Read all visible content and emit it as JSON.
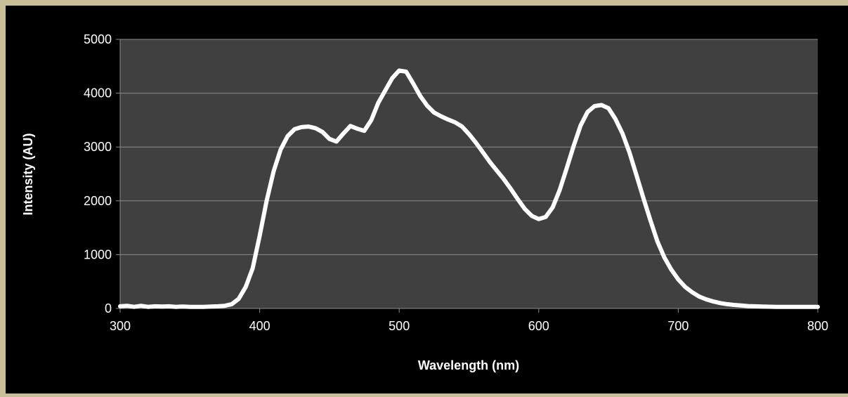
{
  "chart_data": {
    "type": "line",
    "title": "",
    "xlabel": "Wavelength (nm)",
    "ylabel": "Intensity (AU)",
    "xlim": [
      300,
      800
    ],
    "ylim": [
      0,
      5000
    ],
    "xticks": [
      300,
      400,
      500,
      600,
      700,
      800
    ],
    "yticks": [
      0,
      1000,
      2000,
      3000,
      4000,
      5000
    ],
    "grid": "horizontal",
    "legend": "none",
    "colors": {
      "background": "#c8bf98",
      "chart_area": "#000000",
      "plot_area": "#404040",
      "gridline": "#8c8c8c",
      "series": "#ffffff"
    },
    "series": [
      {
        "values": [
          [
            300,
            40
          ],
          [
            305,
            50
          ],
          [
            310,
            30
          ],
          [
            315,
            50
          ],
          [
            320,
            30
          ],
          [
            325,
            40
          ],
          [
            330,
            35
          ],
          [
            335,
            40
          ],
          [
            340,
            30
          ],
          [
            345,
            35
          ],
          [
            350,
            30
          ],
          [
            355,
            30
          ],
          [
            360,
            30
          ],
          [
            365,
            35
          ],
          [
            370,
            40
          ],
          [
            375,
            50
          ],
          [
            380,
            80
          ],
          [
            385,
            180
          ],
          [
            390,
            400
          ],
          [
            395,
            750
          ],
          [
            400,
            1350
          ],
          [
            405,
            2000
          ],
          [
            410,
            2550
          ],
          [
            415,
            2950
          ],
          [
            420,
            3200
          ],
          [
            425,
            3330
          ],
          [
            430,
            3370
          ],
          [
            435,
            3380
          ],
          [
            440,
            3350
          ],
          [
            445,
            3280
          ],
          [
            450,
            3150
          ],
          [
            455,
            3100
          ],
          [
            460,
            3250
          ],
          [
            465,
            3390
          ],
          [
            470,
            3340
          ],
          [
            475,
            3300
          ],
          [
            480,
            3500
          ],
          [
            485,
            3820
          ],
          [
            490,
            4050
          ],
          [
            495,
            4280
          ],
          [
            500,
            4420
          ],
          [
            505,
            4400
          ],
          [
            510,
            4180
          ],
          [
            515,
            3950
          ],
          [
            520,
            3770
          ],
          [
            525,
            3640
          ],
          [
            530,
            3570
          ],
          [
            535,
            3510
          ],
          [
            540,
            3460
          ],
          [
            545,
            3380
          ],
          [
            550,
            3240
          ],
          [
            555,
            3080
          ],
          [
            560,
            2900
          ],
          [
            565,
            2720
          ],
          [
            570,
            2560
          ],
          [
            575,
            2400
          ],
          [
            580,
            2220
          ],
          [
            585,
            2030
          ],
          [
            590,
            1850
          ],
          [
            595,
            1720
          ],
          [
            600,
            1660
          ],
          [
            605,
            1700
          ],
          [
            610,
            1880
          ],
          [
            615,
            2200
          ],
          [
            620,
            2600
          ],
          [
            625,
            3020
          ],
          [
            630,
            3400
          ],
          [
            635,
            3650
          ],
          [
            640,
            3760
          ],
          [
            645,
            3780
          ],
          [
            650,
            3720
          ],
          [
            655,
            3520
          ],
          [
            660,
            3250
          ],
          [
            665,
            2900
          ],
          [
            670,
            2480
          ],
          [
            675,
            2050
          ],
          [
            680,
            1640
          ],
          [
            685,
            1250
          ],
          [
            690,
            950
          ],
          [
            695,
            720
          ],
          [
            700,
            540
          ],
          [
            705,
            400
          ],
          [
            710,
            300
          ],
          [
            715,
            220
          ],
          [
            720,
            170
          ],
          [
            725,
            130
          ],
          [
            730,
            100
          ],
          [
            735,
            80
          ],
          [
            740,
            65
          ],
          [
            745,
            55
          ],
          [
            750,
            45
          ],
          [
            755,
            40
          ],
          [
            760,
            35
          ],
          [
            770,
            30
          ],
          [
            780,
            30
          ],
          [
            790,
            30
          ],
          [
            800,
            30
          ]
        ]
      }
    ]
  }
}
